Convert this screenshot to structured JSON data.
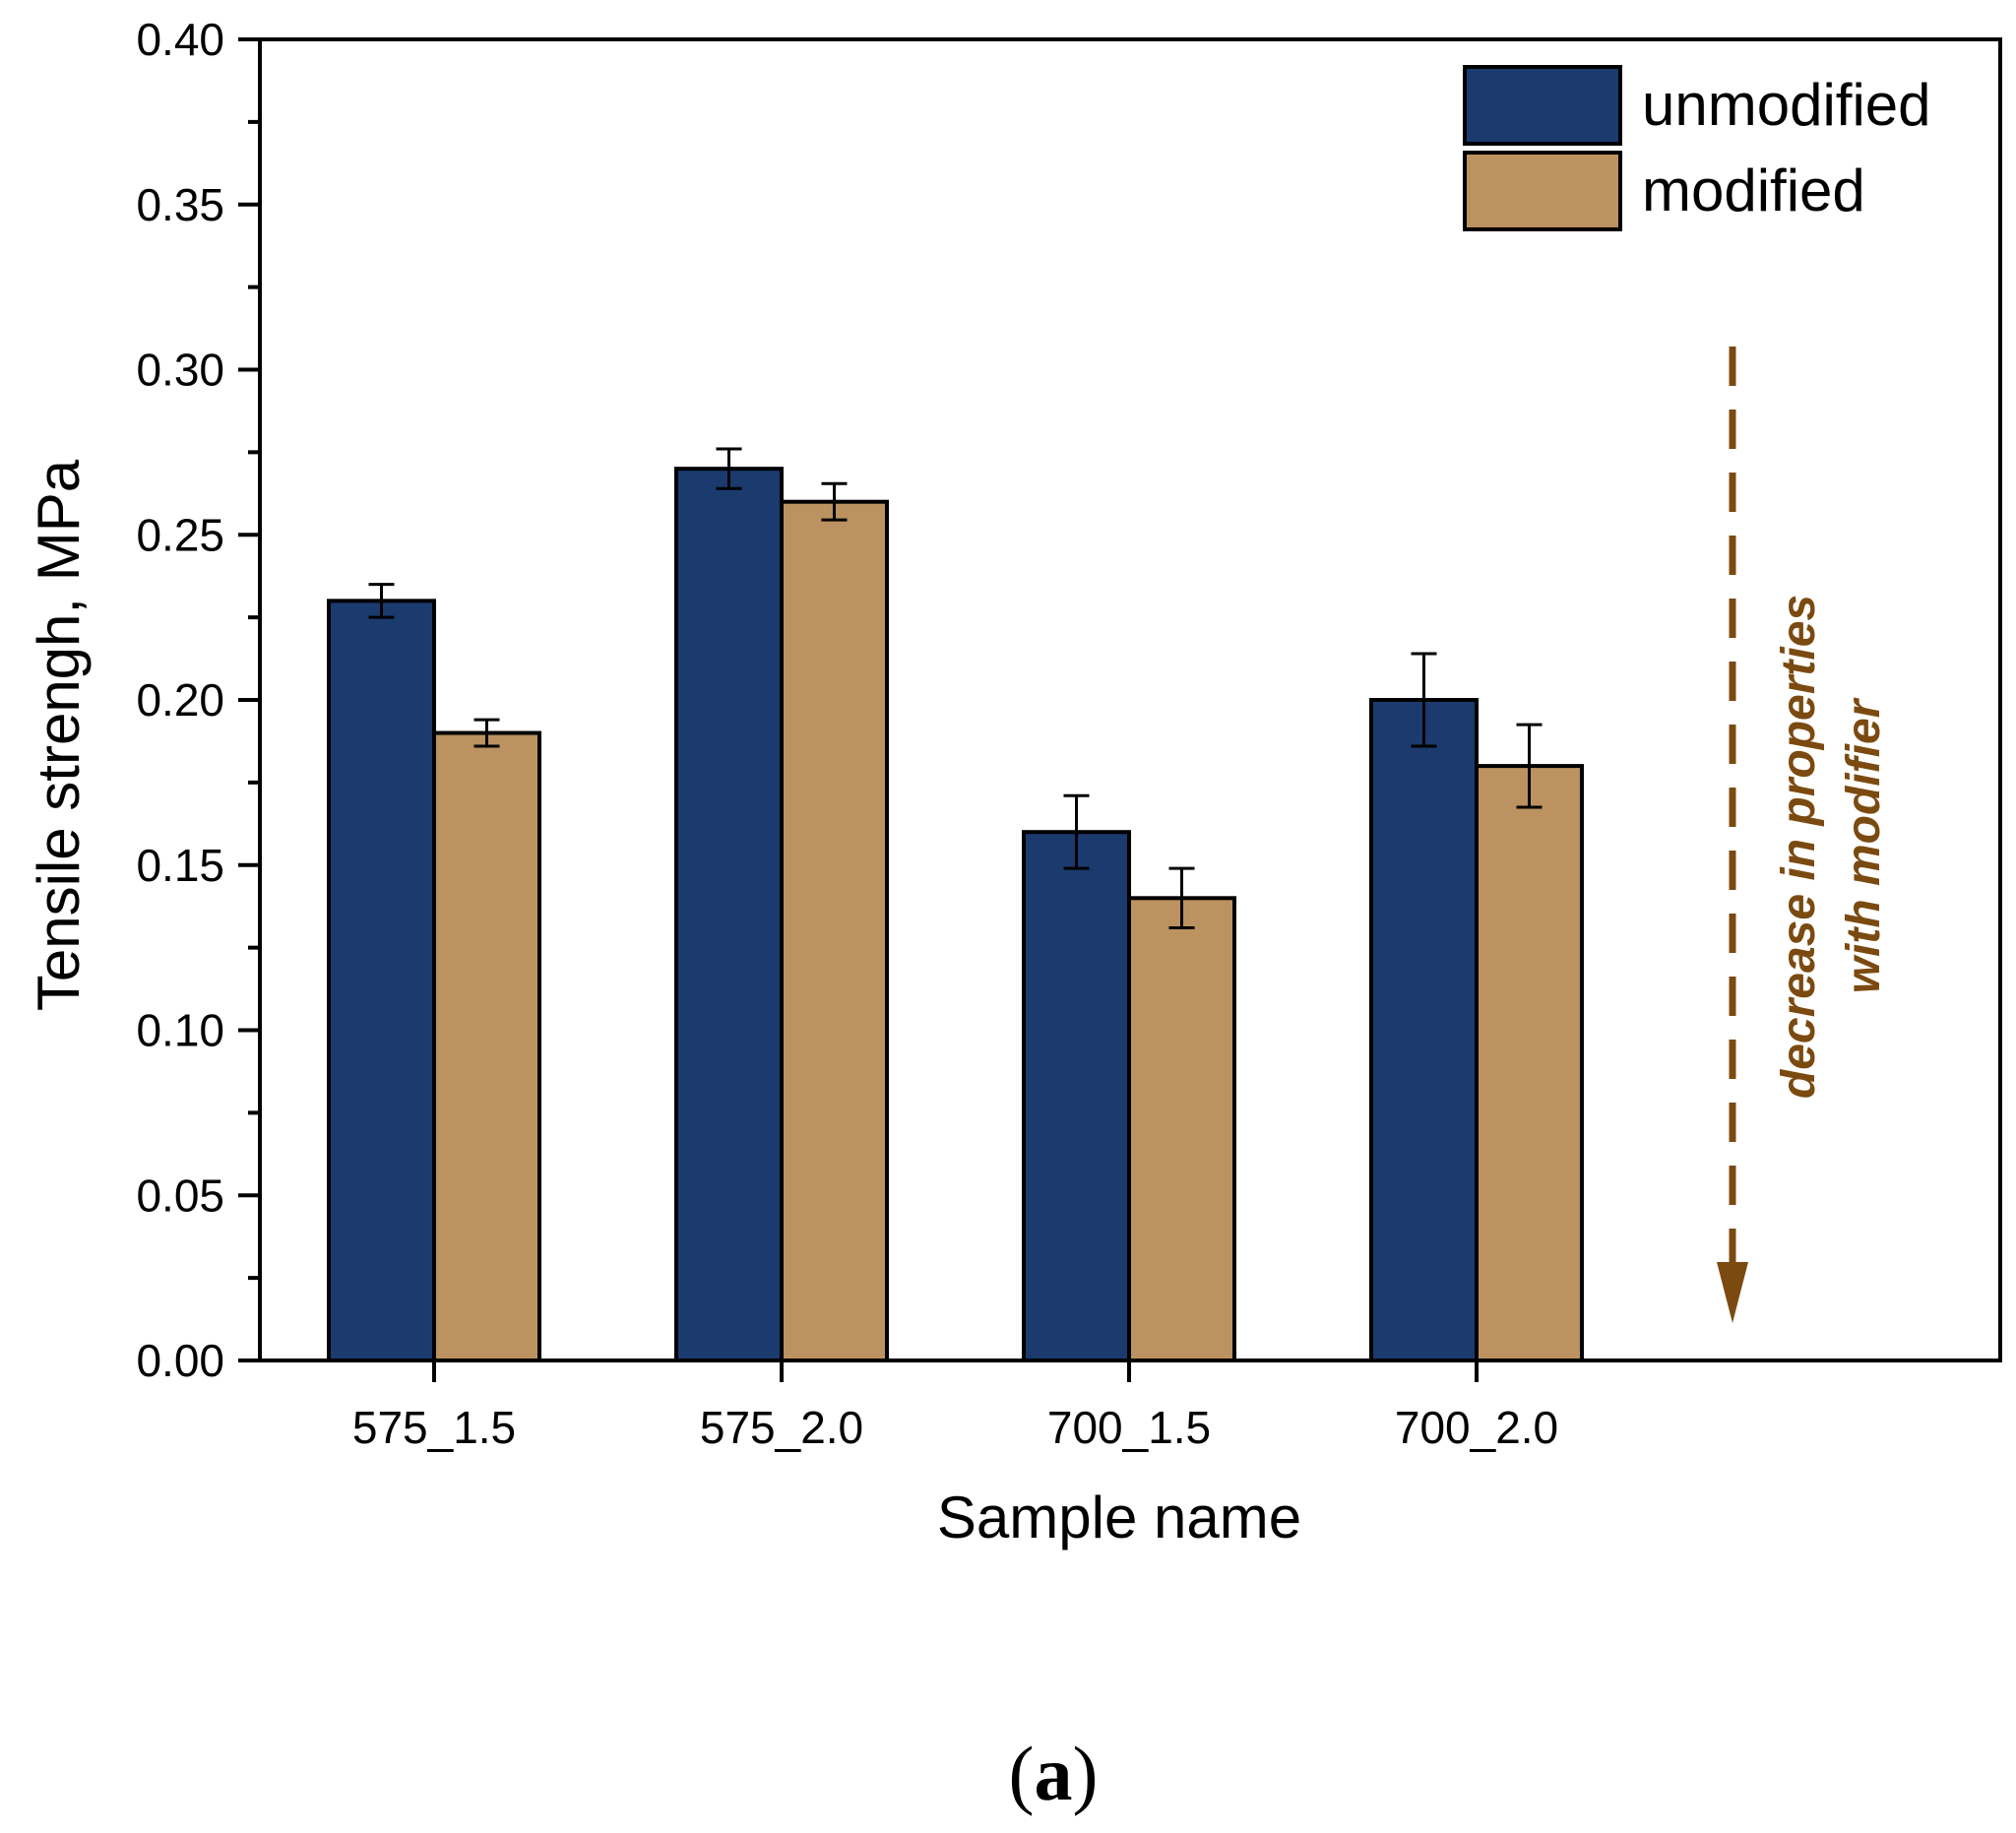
{
  "chart_data": {
    "type": "bar",
    "title": "",
    "xlabel": "Sample name",
    "ylabel": "Tensile strengh, MPa",
    "ylim": [
      0,
      0.4
    ],
    "yticks": [
      "0.00",
      "0.05",
      "0.10",
      "0.15",
      "0.20",
      "0.25",
      "0.30",
      "0.35",
      "0.40"
    ],
    "categories": [
      "575_1.5",
      "575_2.0",
      "700_1.5",
      "700_2.0"
    ],
    "series": [
      {
        "name": "unmodified",
        "color": "#1b3a6e",
        "values": [
          0.23,
          0.27,
          0.16,
          0.2
        ],
        "errors": [
          0.005,
          0.006,
          0.011,
          0.014
        ]
      },
      {
        "name": "modified",
        "color": "#bb9260",
        "values": [
          0.19,
          0.26,
          0.14,
          0.18
        ],
        "errors": [
          0.004,
          0.0055,
          0.009,
          0.0125
        ]
      }
    ],
    "legend_position": "top-right",
    "grid": false,
    "annotation": {
      "lines": [
        "decrease in properties",
        "with modifier"
      ],
      "color": "#7b4a10",
      "arrow": "dashed-down"
    }
  },
  "panel_label": {
    "open": "(",
    "letter": "a",
    "close": ")"
  }
}
